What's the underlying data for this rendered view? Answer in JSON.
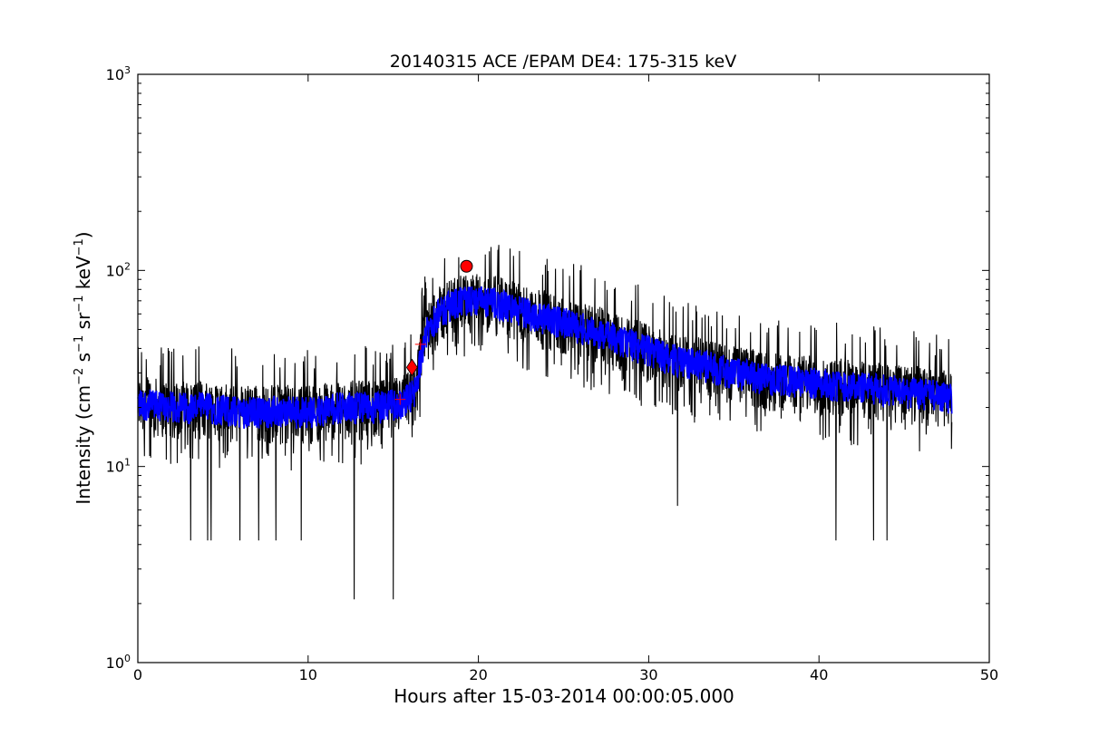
{
  "chart_data": {
    "type": "line",
    "title": "20140315 ACE /EPAM DE4: 175-315 keV",
    "xlabel": "Hours after 15-03-2014 00:00:05.000",
    "ylabel_parts": [
      "Intensity (cm",
      "−2",
      " s",
      "−1",
      " sr",
      "−1",
      " keV",
      "−1",
      ")"
    ],
    "xlim": [
      0,
      50
    ],
    "ylim": [
      1,
      1000
    ],
    "yscale": "log",
    "x_ticks": [
      0,
      10,
      20,
      30,
      40,
      50
    ],
    "x_tick_labels": [
      "0",
      "10",
      "20",
      "30",
      "40",
      "50"
    ],
    "y_ticks": [
      1,
      10,
      100,
      1000
    ],
    "y_tick_labels": [
      {
        "base": "10",
        "exp": "0"
      },
      {
        "base": "10",
        "exp": "1"
      },
      {
        "base": "10",
        "exp": "2"
      },
      {
        "base": "10",
        "exp": "3"
      }
    ],
    "grid": false,
    "raw_profile": {
      "x": [
        0,
        2,
        4,
        6,
        8,
        10,
        12,
        14,
        15.5,
        16.3,
        16.8,
        17.5,
        18.5,
        19.5,
        21,
        23,
        25,
        27,
        29,
        31,
        33,
        35,
        37,
        39,
        41,
        43,
        45,
        47,
        47.8
      ],
      "y": [
        21,
        20,
        20,
        19,
        19,
        19,
        20,
        20,
        21,
        24,
        45,
        58,
        68,
        70,
        68,
        60,
        54,
        48,
        42,
        36,
        33,
        30,
        28,
        27,
        26,
        25,
        24,
        23,
        22
      ]
    },
    "deep_dips": [
      {
        "x": 3.1,
        "y": 4.2
      },
      {
        "x": 4.1,
        "y": 4.2
      },
      {
        "x": 4.3,
        "y": 4.2
      },
      {
        "x": 6.0,
        "y": 4.2
      },
      {
        "x": 7.1,
        "y": 4.2
      },
      {
        "x": 8.1,
        "y": 4.2
      },
      {
        "x": 9.6,
        "y": 4.2
      },
      {
        "x": 12.7,
        "y": 2.1
      },
      {
        "x": 15.0,
        "y": 2.1
      },
      {
        "x": 31.7,
        "y": 6.3
      },
      {
        "x": 41.0,
        "y": 4.2
      },
      {
        "x": 43.2,
        "y": 4.2
      },
      {
        "x": 44.0,
        "y": 4.2
      }
    ],
    "series": [
      {
        "values_note": "raw intensity",
        "color": "#000000"
      },
      {
        "values_note": "smoothed intensity",
        "color": "#0000ff"
      }
    ],
    "markers": [
      {
        "type": "cross",
        "x": 15.4,
        "y": 22,
        "color": "#ff0000"
      },
      {
        "type": "cross",
        "x": 16.6,
        "y": 42,
        "color": "#ff0000"
      },
      {
        "type": "diamond",
        "x": 16.1,
        "y": 32,
        "color": "#ff0000"
      },
      {
        "type": "circle",
        "x": 19.3,
        "y": 105,
        "color": "#ff0000"
      }
    ]
  }
}
